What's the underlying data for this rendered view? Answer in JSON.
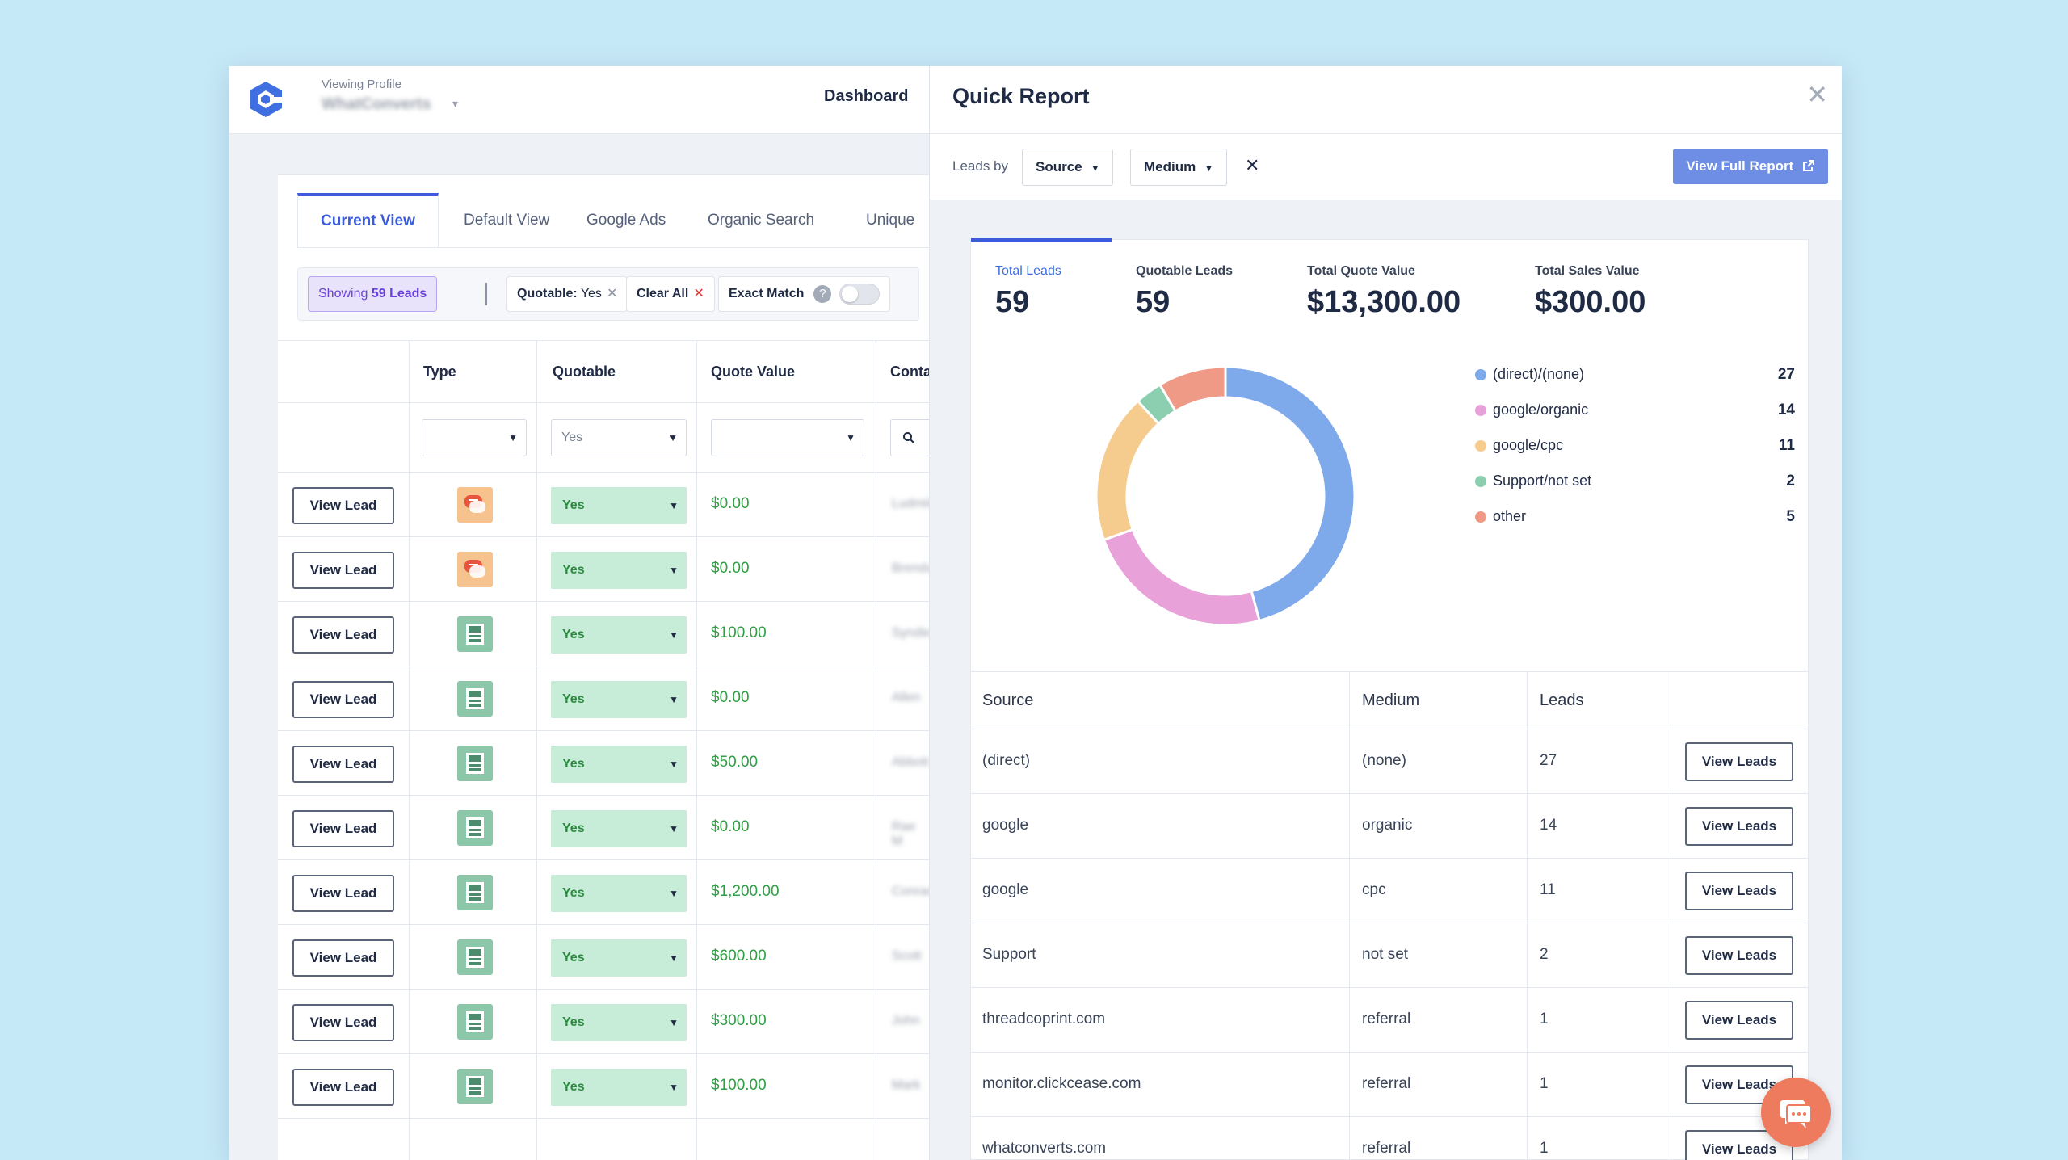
{
  "app": {
    "viewing_label": "Viewing Profile",
    "profile_name": "WhatConverts",
    "nav_dashboard": "Dashboard"
  },
  "tabs": [
    "Current View",
    "Default View",
    "Google Ads",
    "Organic Search",
    "Unique"
  ],
  "filters": {
    "showing_prefix": "Showing ",
    "showing_count": "59 Leads",
    "quotable_label": "Quotable:",
    "quotable_value": " Yes",
    "clear_all": "Clear All",
    "exact_match": "Exact Match",
    "help": "?"
  },
  "table": {
    "columns": [
      "Type",
      "Quotable",
      "Quote Value",
      "Conta"
    ],
    "filter_quotable_value": "Yes",
    "view_lead_label": "View Lead",
    "rows": [
      {
        "type": "chat",
        "quotable": "Yes",
        "quote_value": "$0.00",
        "contact": "Ludmila"
      },
      {
        "type": "chat",
        "quotable": "Yes",
        "quote_value": "$0.00",
        "contact": "Brendan"
      },
      {
        "type": "form",
        "quotable": "Yes",
        "quote_value": "$100.00",
        "contact": "Syndie"
      },
      {
        "type": "form",
        "quotable": "Yes",
        "quote_value": "$0.00",
        "contact": "Allen"
      },
      {
        "type": "form",
        "quotable": "Yes",
        "quote_value": "$50.00",
        "contact": "Abbott"
      },
      {
        "type": "form",
        "quotable": "Yes",
        "quote_value": "$0.00",
        "contact": "Rae M"
      },
      {
        "type": "form",
        "quotable": "Yes",
        "quote_value": "$1,200.00",
        "contact": "Conrad"
      },
      {
        "type": "form",
        "quotable": "Yes",
        "quote_value": "$600.00",
        "contact": "Scott"
      },
      {
        "type": "form",
        "quotable": "Yes",
        "quote_value": "$300.00",
        "contact": "John"
      },
      {
        "type": "form",
        "quotable": "Yes",
        "quote_value": "$100.00",
        "contact": "Mark"
      }
    ]
  },
  "quick_report": {
    "title": "Quick Report",
    "close": "✕",
    "leads_by": "Leads by",
    "source_dd": "Source",
    "medium_dd": "Medium",
    "clear_x": "✕",
    "view_full_report": "View Full Report",
    "stats": [
      {
        "label": "Total Leads",
        "value": "59"
      },
      {
        "label": "Quotable Leads",
        "value": "59"
      },
      {
        "label": "Total Quote Value",
        "value": "$13,300.00"
      },
      {
        "label": "Total Sales Value",
        "value": "$300.00"
      }
    ],
    "chart_data": {
      "type": "pie",
      "categories": [
        "(direct)/(none)",
        "google/organic",
        "google/cpc",
        "Support/not set",
        "other"
      ],
      "values": [
        27,
        14,
        11,
        2,
        5
      ],
      "colors": [
        "#7ea9ea",
        "#e9a1d9",
        "#f5cc8e",
        "#8ccfb0",
        "#ef9a86"
      ]
    },
    "table_headers": [
      "Source",
      "Medium",
      "Leads"
    ],
    "view_leads_label": "View Leads",
    "rows": [
      {
        "source": "(direct)",
        "medium": "(none)",
        "leads": "27"
      },
      {
        "source": "google",
        "medium": "organic",
        "leads": "14"
      },
      {
        "source": "google",
        "medium": "cpc",
        "leads": "11"
      },
      {
        "source": "Support",
        "medium": "not set",
        "leads": "2"
      },
      {
        "source": "threadcoprint.com",
        "medium": "referral",
        "leads": "1"
      },
      {
        "source": "monitor.clickcease.com",
        "medium": "referral",
        "leads": "1"
      },
      {
        "source": "whatconverts.com",
        "medium": "referral",
        "leads": "1"
      }
    ]
  }
}
